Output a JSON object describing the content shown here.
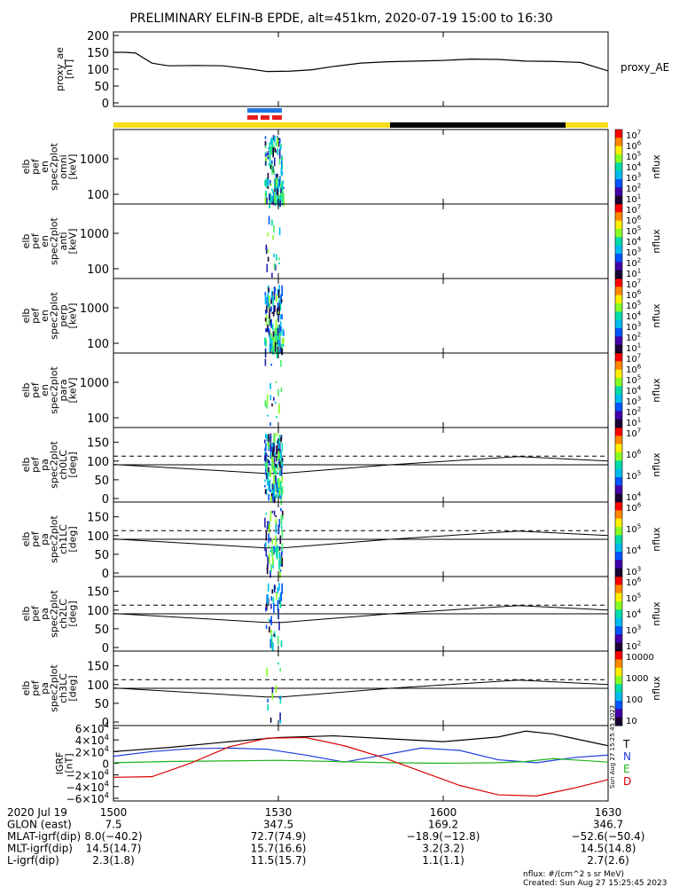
{
  "title": "PRELIMINARY ELFIN-B EPDE, alt=451km, 2020-07-19 15:00 to 16:30",
  "colors": {
    "ae": "#000000",
    "bar_yellow": "#f5dc19",
    "bar_black": "#000000",
    "blue_bar": "#1e78e6",
    "red_bar": "#e61e1e",
    "grf_t": "#000000",
    "grf_n": "#1e3cdc",
    "grf_e": "#1eb41e",
    "grf_d": "#dc0000"
  },
  "ae_panel": {
    "ylabel": "proxy_ae [nT]",
    "legend": "proxy_AE",
    "ylim": [
      0,
      200
    ],
    "yticks": [
      "0",
      "50",
      "100",
      "150",
      "200"
    ]
  },
  "spec_panels": [
    {
      "ylabel": [
        "elb",
        "pef",
        "en",
        "spec2plot",
        "omni",
        "[keV]"
      ],
      "yticks": [
        "1000",
        "100"
      ],
      "cb_label": "nflux",
      "cb_ticks": [
        "10^1",
        "10^2",
        "10^3",
        "10^4",
        "10^5",
        "10^6",
        "10^7"
      ]
    },
    {
      "ylabel": [
        "elb",
        "pef",
        "en",
        "spec2plot",
        "anti",
        "[keV]"
      ],
      "yticks": [
        "1000",
        "100"
      ],
      "cb_label": "nflux",
      "cb_ticks": [
        "10^1",
        "10^2",
        "10^3",
        "10^4",
        "10^5",
        "10^6",
        "10^7"
      ]
    },
    {
      "ylabel": [
        "elb",
        "pef",
        "en",
        "spec2plot",
        "perp",
        "[keV]"
      ],
      "yticks": [
        "1000",
        "100"
      ],
      "cb_label": "nflux",
      "cb_ticks": [
        "10^1",
        "10^2",
        "10^3",
        "10^4",
        "10^5",
        "10^6",
        "10^7"
      ]
    },
    {
      "ylabel": [
        "elb",
        "pef",
        "en",
        "spec2plot",
        "para",
        "[keV]"
      ],
      "yticks": [
        "1000",
        "100"
      ],
      "cb_label": "nflux",
      "cb_ticks": [
        "10^1",
        "10^2",
        "10^3",
        "10^4",
        "10^5",
        "10^6",
        "10^7"
      ]
    }
  ],
  "pa_panels": [
    {
      "ylabel": [
        "elb",
        "pef",
        "pa",
        "spec2plot",
        "ch0LC",
        "[deg]"
      ],
      "yticks": [
        "0",
        "50",
        "100",
        "150"
      ],
      "cb_label": "nflux",
      "cb_ticks": [
        "10^4",
        "10^5",
        "10^6",
        "10^7"
      ]
    },
    {
      "ylabel": [
        "elb",
        "pef",
        "pa",
        "spec2plot",
        "ch1LC",
        "[deg]"
      ],
      "yticks": [
        "0",
        "50",
        "100",
        "150"
      ],
      "cb_label": "nflux",
      "cb_ticks": [
        "10^3",
        "10^4",
        "10^5",
        "10^6"
      ]
    },
    {
      "ylabel": [
        "elb",
        "pef",
        "pa",
        "spec2plot",
        "ch2LC",
        "[deg]"
      ],
      "yticks": [
        "0",
        "50",
        "100",
        "150"
      ],
      "cb_label": "nflux",
      "cb_ticks": [
        "10^2",
        "10^3",
        "10^4",
        "10^5",
        "10^6"
      ]
    },
    {
      "ylabel": [
        "elb",
        "pef",
        "pa",
        "spec2plot",
        "ch3LC",
        "[deg]"
      ],
      "yticks": [
        "0",
        "50",
        "100",
        "150"
      ],
      "cb_label": "nflux",
      "cb_ticks": [
        "10",
        "100",
        "1000",
        "10000"
      ]
    }
  ],
  "grf_panel": {
    "ylabel": "IGRF [nT]",
    "yticks": [
      "6×10^4",
      "4×10^4",
      "2×10^4",
      "0",
      "−2×10^4",
      "−4×10^4",
      "−6×10^4"
    ],
    "legend": [
      "T",
      "N",
      "E",
      "D"
    ],
    "side_text": "Sun Aug 27 15:25:45 2023"
  },
  "x_axis": {
    "ticks": [
      "1500",
      "1530",
      "1600",
      "1630"
    ]
  },
  "orbit_table": {
    "rows": [
      {
        "label": "2020 Jul 19",
        "values": [
          "1500",
          "1530",
          "1600",
          "1630"
        ]
      },
      {
        "label": "GLON (east)",
        "values": [
          "7.5",
          "347.5",
          "169.2",
          "346.7"
        ]
      },
      {
        "label": "MLAT-igrf(dip)",
        "values": [
          "8.0(−40.2)",
          "72.7(74.9)",
          "−18.9(−12.8)",
          "−52.6(−50.4)"
        ]
      },
      {
        "label": "MLT-igrf(dip)",
        "values": [
          "14.5(14.7)",
          "15.7(16.6)",
          "3.2(3.2)",
          "14.5(14.8)"
        ]
      },
      {
        "label": "L-igrf(dip)",
        "values": [
          "2.3(1.8)",
          "11.5(15.7)",
          "1.1(1.1)",
          "2.7(2.6)"
        ]
      }
    ]
  },
  "footer": {
    "units": "nflux: #/(cm^2 s sr MeV)",
    "created": "Created: Sun Aug 27 15:25:45 2023"
  },
  "chart_data": {
    "type": "line",
    "x_range": [
      "15:00",
      "16:30"
    ],
    "series": [
      {
        "name": "proxy_AE",
        "x": [
          "15:00",
          "15:02",
          "15:04",
          "15:07",
          "15:10",
          "15:15",
          "15:20",
          "15:25",
          "15:28",
          "15:32",
          "15:36",
          "15:40",
          "15:45",
          "15:50",
          "15:55",
          "16:00",
          "16:05",
          "16:10",
          "16:15",
          "16:20",
          "16:25",
          "16:30"
        ],
        "values": [
          150,
          150,
          148,
          118,
          110,
          111,
          110,
          100,
          93,
          94,
          98,
          108,
          118,
          122,
          124,
          126,
          130,
          129,
          124,
          123,
          120,
          95
        ]
      },
      {
        "name": "T",
        "x": [
          "15:00",
          "15:10",
          "15:20",
          "15:30",
          "15:40",
          "15:50",
          "16:00",
          "16:10",
          "16:15",
          "16:20",
          "16:30"
        ],
        "values": [
          20000,
          27000,
          36000,
          44000,
          47000,
          42000,
          37000,
          45000,
          55000,
          50000,
          30000
        ]
      },
      {
        "name": "N",
        "x": [
          "15:00",
          "15:07",
          "15:14",
          "15:21",
          "15:28",
          "15:35",
          "15:42",
          "15:49",
          "15:56",
          "16:03",
          "16:10",
          "16:17",
          "16:24",
          "16:30"
        ],
        "values": [
          12000,
          20000,
          25000,
          26000,
          24000,
          14000,
          2000,
          14000,
          26000,
          22000,
          6000,
          1000,
          10000,
          14000
        ]
      },
      {
        "name": "E",
        "x": [
          "15:00",
          "15:10",
          "15:20",
          "15:30",
          "15:40",
          "15:50",
          "16:00",
          "16:10",
          "16:15",
          "16:20",
          "16:30"
        ],
        "values": [
          1000,
          3000,
          4000,
          5000,
          3000,
          1000,
          0,
          1000,
          3000,
          8000,
          2000
        ]
      },
      {
        "name": "D",
        "x": [
          "15:00",
          "15:07",
          "15:14",
          "15:21",
          "15:28",
          "15:35",
          "15:42",
          "15:49",
          "15:56",
          "16:03",
          "16:10",
          "16:17",
          "16:24",
          "16:30"
        ],
        "values": [
          -24000,
          -23000,
          0,
          28000,
          43000,
          44000,
          30000,
          10000,
          -14000,
          -38000,
          -54000,
          -56000,
          -42000,
          -28000
        ]
      }
    ]
  }
}
